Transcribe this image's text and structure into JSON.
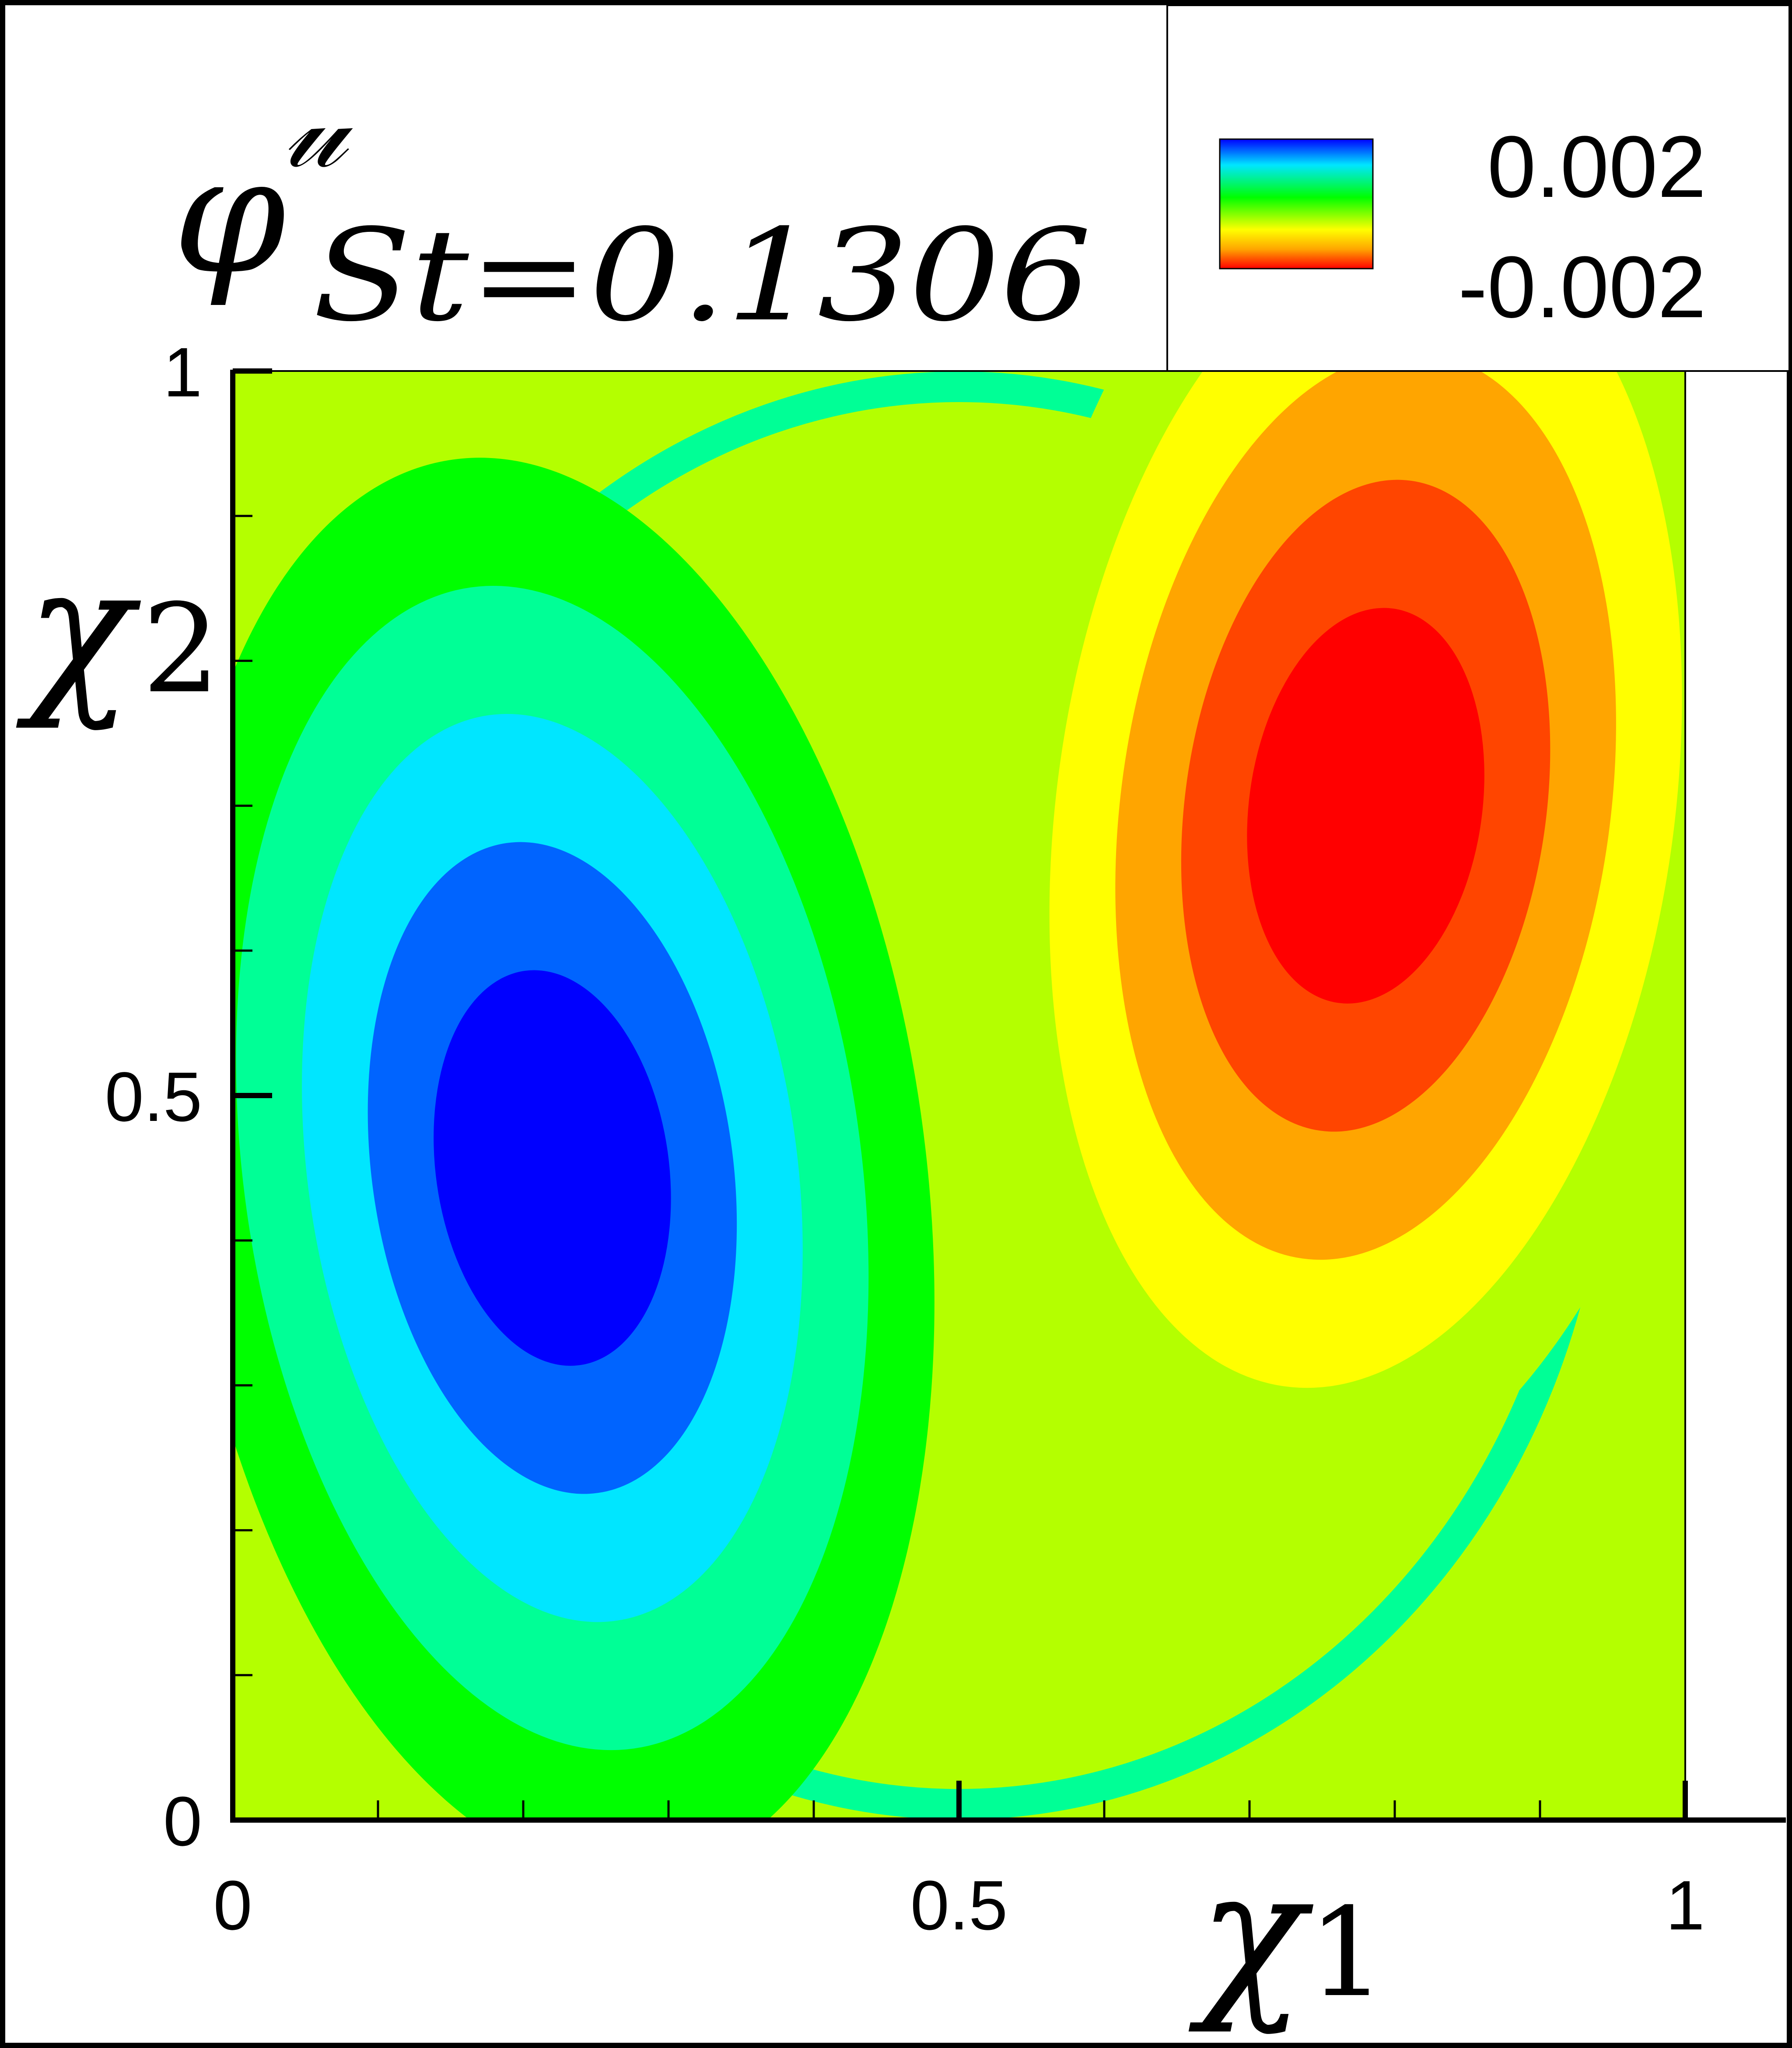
{
  "chart_data": {
    "type": "heatmap",
    "title": {
      "symbol": "φ",
      "superscript": "𝓊",
      "subscript": "St=0.1306"
    },
    "xlabel": {
      "symbol": "χ",
      "subscript": "1"
    },
    "ylabel": {
      "symbol": "χ",
      "subscript": "2"
    },
    "xlim": [
      0,
      1
    ],
    "ylim": [
      0,
      1
    ],
    "xticks": [
      {
        "value": 0,
        "label": "0"
      },
      {
        "value": 0.5,
        "label": "0.5"
      },
      {
        "value": 1,
        "label": "1"
      }
    ],
    "yticks": [
      {
        "value": 0,
        "label": "0"
      },
      {
        "value": 0.5,
        "label": "0.5"
      },
      {
        "value": 1,
        "label": "1"
      }
    ],
    "minor_tick_step": 0.1,
    "colorbar": {
      "position": "top-right",
      "max_label": "0.002",
      "min_label": "-0.002",
      "vmin": -0.002,
      "vmax": 0.002
    },
    "colormap": [
      "#0000ff",
      "#0064ff",
      "#00e6ff",
      "#00ff96",
      "#00ff00",
      "#b4ff00",
      "#ffff00",
      "#ffa500",
      "#ff4500",
      "#ff0000"
    ],
    "field": {
      "background_value": 0,
      "extrema": [
        {
          "x": 0.22,
          "y": 0.45,
          "value": 0.002
        },
        {
          "x": 0.78,
          "y": 0.7,
          "value": -0.002
        }
      ]
    }
  }
}
